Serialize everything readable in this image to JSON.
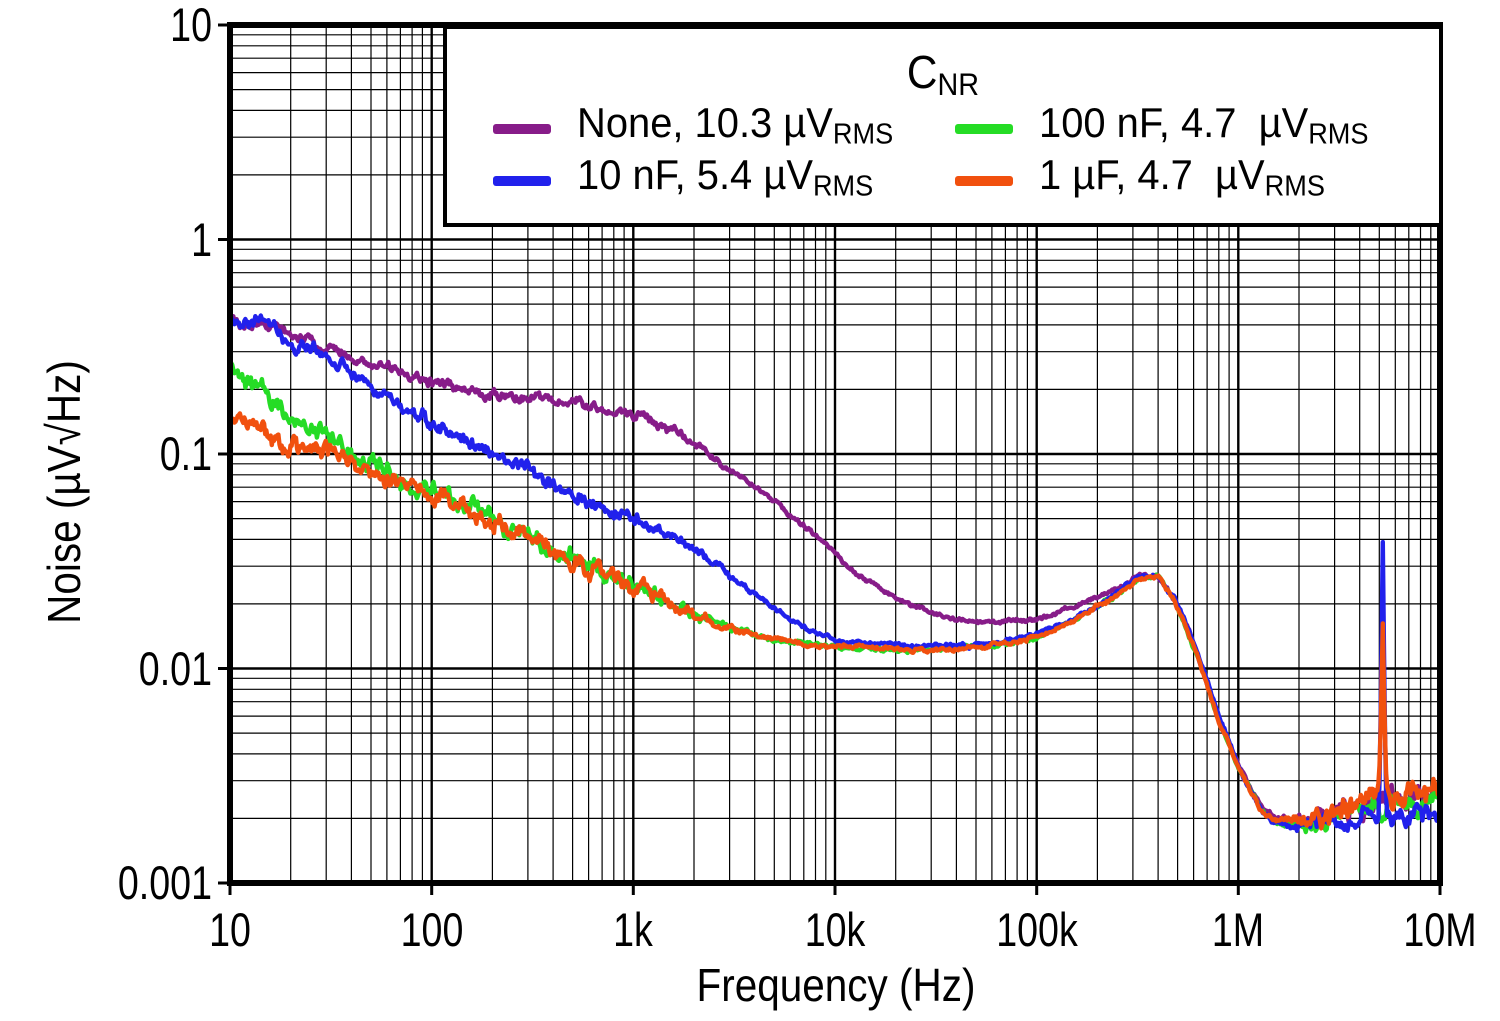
{
  "figure": {
    "background": "#FFFFFF",
    "axis_color": "#000000"
  },
  "chart_data": {
    "type": "line",
    "title": "",
    "xlabel": "Frequency (Hz)",
    "ylabel": "Noise (µV√Hz)",
    "x_scale": "log",
    "y_scale": "log",
    "xlim": [
      10,
      10000000
    ],
    "ylim": [
      0.001,
      10
    ],
    "grid": "major+minor log-log, black on white",
    "legend_position": "top",
    "legend_title": {
      "prefix": "C",
      "sub": "NR"
    },
    "x_ticks": [
      "10",
      "100",
      "1k",
      "10k",
      "100k",
      "1M",
      "10M"
    ],
    "y_ticks": [
      "10",
      "1",
      "0.1",
      "0.01",
      "0.001"
    ],
    "series": [
      {
        "name": "None",
        "legend_prefix": "None, 10.3 µV",
        "legend_sub": "RMS",
        "rms_uV": 10.3,
        "color": "#871C89",
        "points": [
          [
            10,
            0.43
          ],
          [
            13,
            0.41
          ],
          [
            16,
            0.4
          ],
          [
            20,
            0.365
          ],
          [
            25,
            0.335
          ],
          [
            32,
            0.305
          ],
          [
            40,
            0.28
          ],
          [
            50,
            0.262
          ],
          [
            63,
            0.25
          ],
          [
            80,
            0.237
          ],
          [
            100,
            0.222
          ],
          [
            125,
            0.21
          ],
          [
            160,
            0.198
          ],
          [
            200,
            0.192
          ],
          [
            250,
            0.189
          ],
          [
            320,
            0.186
          ],
          [
            400,
            0.178
          ],
          [
            500,
            0.172
          ],
          [
            630,
            0.166
          ],
          [
            800,
            0.158
          ],
          [
            1000,
            0.15
          ],
          [
            1250,
            0.139
          ],
          [
            1600,
            0.128
          ],
          [
            2000,
            0.112
          ],
          [
            2500,
            0.096
          ],
          [
            3200,
            0.082
          ],
          [
            4000,
            0.07
          ],
          [
            5000,
            0.06
          ],
          [
            6300,
            0.05
          ],
          [
            8000,
            0.042
          ],
          [
            10000,
            0.035
          ],
          [
            12500,
            0.028
          ],
          [
            16000,
            0.024
          ],
          [
            20000,
            0.021
          ],
          [
            25000,
            0.0193
          ],
          [
            32000,
            0.018
          ],
          [
            40000,
            0.017
          ],
          [
            50000,
            0.0166
          ],
          [
            63000,
            0.0166
          ],
          [
            80000,
            0.0168
          ],
          [
            100000,
            0.017
          ],
          [
            125000,
            0.018
          ],
          [
            160000,
            0.0195
          ],
          [
            200000,
            0.0215
          ],
          [
            250000,
            0.0235
          ],
          [
            320000,
            0.027
          ],
          [
            400000,
            0.0265
          ],
          [
            480000,
            0.021
          ],
          [
            560000,
            0.0155
          ],
          [
            630000,
            0.0115
          ],
          [
            700000,
            0.0085
          ],
          [
            800000,
            0.006
          ],
          [
            900000,
            0.0045
          ],
          [
            1000000,
            0.0036
          ],
          [
            1150000,
            0.0028
          ],
          [
            1300000,
            0.0023
          ],
          [
            1500000,
            0.00205
          ],
          [
            1800000,
            0.00195
          ],
          [
            2200000,
            0.002
          ],
          [
            2800000,
            0.0021
          ],
          [
            3500000,
            0.0022
          ],
          [
            4500000,
            0.0023
          ],
          [
            6000000,
            0.0024
          ],
          [
            8000000,
            0.0025
          ],
          [
            10000000,
            0.0026
          ]
        ]
      },
      {
        "name": "10 nF",
        "legend_prefix": "10 nF, 5.4 µV",
        "legend_sub": "RMS",
        "rms_uV": 5.4,
        "color": "#2121EC",
        "spike": {
          "freq": 5200000,
          "value": 0.042
        },
        "points": [
          [
            10,
            0.45
          ],
          [
            12,
            0.4
          ],
          [
            14,
            0.42
          ],
          [
            16,
            0.38
          ],
          [
            20,
            0.335
          ],
          [
            25,
            0.3
          ],
          [
            32,
            0.268
          ],
          [
            40,
            0.238
          ],
          [
            50,
            0.21
          ],
          [
            63,
            0.183
          ],
          [
            80,
            0.158
          ],
          [
            100,
            0.137
          ],
          [
            125,
            0.122
          ],
          [
            160,
            0.11
          ],
          [
            200,
            0.1
          ],
          [
            250,
            0.091
          ],
          [
            320,
            0.082
          ],
          [
            400,
            0.073
          ],
          [
            500,
            0.065
          ],
          [
            630,
            0.059
          ],
          [
            800,
            0.054
          ],
          [
            1000,
            0.05
          ],
          [
            1250,
            0.044
          ],
          [
            1600,
            0.042
          ],
          [
            2000,
            0.036
          ],
          [
            2500,
            0.031
          ],
          [
            3200,
            0.026
          ],
          [
            4000,
            0.022
          ],
          [
            5000,
            0.019
          ],
          [
            6300,
            0.0165
          ],
          [
            8000,
            0.0148
          ],
          [
            10000,
            0.0138
          ],
          [
            12500,
            0.0133
          ],
          [
            16000,
            0.013
          ],
          [
            20000,
            0.0129
          ],
          [
            25000,
            0.0128
          ],
          [
            32000,
            0.0128
          ],
          [
            40000,
            0.0128
          ],
          [
            50000,
            0.013
          ],
          [
            63000,
            0.0133
          ],
          [
            80000,
            0.0138
          ],
          [
            100000,
            0.0145
          ],
          [
            125000,
            0.0158
          ],
          [
            160000,
            0.0175
          ],
          [
            200000,
            0.0198
          ],
          [
            250000,
            0.0225
          ],
          [
            320000,
            0.027
          ],
          [
            400000,
            0.0272
          ],
          [
            480000,
            0.0215
          ],
          [
            560000,
            0.0158
          ],
          [
            630000,
            0.0118
          ],
          [
            700000,
            0.0088
          ],
          [
            800000,
            0.006
          ],
          [
            900000,
            0.0046
          ],
          [
            1000000,
            0.0036
          ],
          [
            1150000,
            0.0027
          ],
          [
            1300000,
            0.0022
          ],
          [
            1500000,
            0.00195
          ],
          [
            1800000,
            0.00185
          ],
          [
            2200000,
            0.0019
          ],
          [
            2800000,
            0.00195
          ],
          [
            3500000,
            0.002
          ],
          [
            4500000,
            0.0021
          ],
          [
            6000000,
            0.0021
          ],
          [
            8000000,
            0.0022
          ],
          [
            10000000,
            0.0023
          ]
        ]
      },
      {
        "name": "100 nF",
        "legend_prefix": "100 nF, 4.7  µV",
        "legend_sub": "RMS",
        "rms_uV": 4.7,
        "color": "#25DC25",
        "points": [
          [
            10,
            0.26
          ],
          [
            12,
            0.225
          ],
          [
            14,
            0.195
          ],
          [
            17,
            0.165
          ],
          [
            20,
            0.148
          ],
          [
            25,
            0.128
          ],
          [
            32,
            0.112
          ],
          [
            40,
            0.101
          ],
          [
            50,
            0.092
          ],
          [
            63,
            0.083
          ],
          [
            80,
            0.074
          ],
          [
            100,
            0.066
          ],
          [
            125,
            0.0595
          ],
          [
            160,
            0.0535
          ],
          [
            200,
            0.049
          ],
          [
            250,
            0.0445
          ],
          [
            320,
            0.0395
          ],
          [
            400,
            0.0355
          ],
          [
            500,
            0.0325
          ],
          [
            630,
            0.0295
          ],
          [
            800,
            0.0265
          ],
          [
            1000,
            0.0243
          ],
          [
            1250,
            0.0222
          ],
          [
            1600,
            0.0198
          ],
          [
            2000,
            0.018
          ],
          [
            2500,
            0.0165
          ],
          [
            3200,
            0.0152
          ],
          [
            4000,
            0.0143
          ],
          [
            5000,
            0.0137
          ],
          [
            6300,
            0.0132
          ],
          [
            8000,
            0.0129
          ],
          [
            10000,
            0.0127
          ],
          [
            12500,
            0.0125
          ],
          [
            16000,
            0.0124
          ],
          [
            20000,
            0.0123
          ],
          [
            25000,
            0.0123
          ],
          [
            32000,
            0.0123
          ],
          [
            40000,
            0.0124
          ],
          [
            50000,
            0.0126
          ],
          [
            63000,
            0.013
          ],
          [
            80000,
            0.0135
          ],
          [
            100000,
            0.0142
          ],
          [
            125000,
            0.0155
          ],
          [
            160000,
            0.0172
          ],
          [
            200000,
            0.0195
          ],
          [
            250000,
            0.022
          ],
          [
            320000,
            0.0265
          ],
          [
            400000,
            0.0268
          ],
          [
            480000,
            0.021
          ],
          [
            560000,
            0.0152
          ],
          [
            630000,
            0.0112
          ],
          [
            700000,
            0.0085
          ],
          [
            800000,
            0.0058
          ],
          [
            900000,
            0.0044
          ],
          [
            1000000,
            0.0035
          ],
          [
            1150000,
            0.0027
          ],
          [
            1300000,
            0.0022
          ],
          [
            1500000,
            0.00195
          ],
          [
            1800000,
            0.00185
          ],
          [
            2200000,
            0.0019
          ],
          [
            2800000,
            0.002
          ],
          [
            3500000,
            0.0021
          ],
          [
            4500000,
            0.0022
          ],
          [
            6000000,
            0.0023
          ],
          [
            8000000,
            0.0024
          ],
          [
            10000000,
            0.0025
          ]
        ]
      },
      {
        "name": "1 µF",
        "legend_prefix": "1 µF, 4.7  µV",
        "legend_sub": "RMS",
        "rms_uV": 4.7,
        "color": "#F1500E",
        "spike": {
          "freq": 5200000,
          "value": 0.017
        },
        "points": [
          [
            10,
            0.152
          ],
          [
            12,
            0.138
          ],
          [
            14,
            0.128
          ],
          [
            17,
            0.118
          ],
          [
            20,
            0.112
          ],
          [
            25,
            0.103
          ],
          [
            32,
            0.096
          ],
          [
            40,
            0.089
          ],
          [
            50,
            0.0825
          ],
          [
            63,
            0.076
          ],
          [
            80,
            0.07
          ],
          [
            100,
            0.0642
          ],
          [
            125,
            0.058
          ],
          [
            160,
            0.0525
          ],
          [
            200,
            0.0482
          ],
          [
            250,
            0.044
          ],
          [
            320,
            0.039
          ],
          [
            400,
            0.0352
          ],
          [
            500,
            0.0322
          ],
          [
            630,
            0.0292
          ],
          [
            800,
            0.0263
          ],
          [
            1000,
            0.024
          ],
          [
            1250,
            0.0219
          ],
          [
            1600,
            0.0196
          ],
          [
            2000,
            0.0178
          ],
          [
            2500,
            0.0163
          ],
          [
            3200,
            0.015
          ],
          [
            4000,
            0.0142
          ],
          [
            5000,
            0.0136
          ],
          [
            6300,
            0.0131
          ],
          [
            8000,
            0.0128
          ],
          [
            10000,
            0.0126
          ],
          [
            12500,
            0.0125
          ],
          [
            16000,
            0.0124
          ],
          [
            20000,
            0.0123
          ],
          [
            25000,
            0.0122
          ],
          [
            32000,
            0.0123
          ],
          [
            40000,
            0.0124
          ],
          [
            50000,
            0.0126
          ],
          [
            63000,
            0.0129
          ],
          [
            80000,
            0.0134
          ],
          [
            100000,
            0.0141
          ],
          [
            125000,
            0.0154
          ],
          [
            160000,
            0.0171
          ],
          [
            200000,
            0.0194
          ],
          [
            250000,
            0.0218
          ],
          [
            320000,
            0.0262
          ],
          [
            400000,
            0.0264
          ],
          [
            480000,
            0.0208
          ],
          [
            560000,
            0.015
          ],
          [
            630000,
            0.0111
          ],
          [
            700000,
            0.0083
          ],
          [
            800000,
            0.0057
          ],
          [
            900000,
            0.0044
          ],
          [
            1000000,
            0.0035
          ],
          [
            1150000,
            0.0027
          ],
          [
            1300000,
            0.0022
          ],
          [
            1500000,
            0.00195
          ],
          [
            1800000,
            0.0019
          ],
          [
            2200000,
            0.00195
          ],
          [
            2800000,
            0.00205
          ],
          [
            3500000,
            0.00215
          ],
          [
            4500000,
            0.0023
          ],
          [
            6000000,
            0.0025
          ],
          [
            8000000,
            0.0026
          ],
          [
            10000000,
            0.0027
          ]
        ]
      }
    ]
  }
}
